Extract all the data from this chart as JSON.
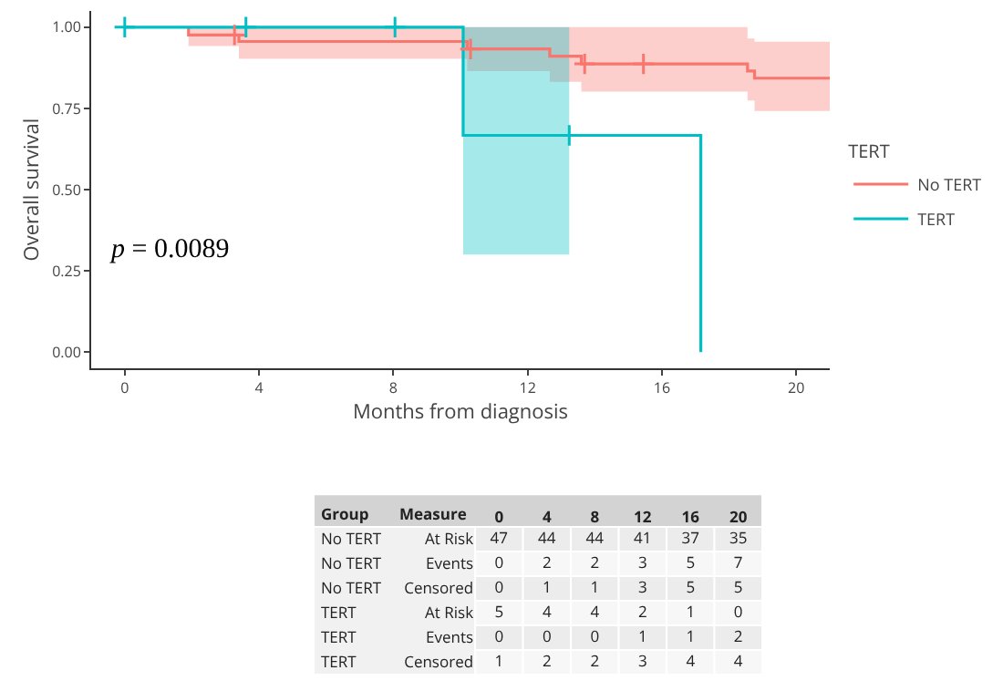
{
  "chart_data": [
    {
      "type": "step",
      "xlabel": "Months from diagnosis",
      "ylabel": "Overall survival",
      "legend_title": "TERT",
      "annotations": [
        "p = 0.0089"
      ],
      "xlim": [
        -1,
        21
      ],
      "xticks": [
        0,
        4,
        8,
        12,
        16,
        20
      ],
      "ylim": [
        -0.05,
        1.05
      ],
      "yticks": [
        {
          "value": 0,
          "label": "0.00"
        },
        {
          "value": 0.25,
          "label": "0.25"
        },
        {
          "value": 0.5,
          "label": "0.50"
        },
        {
          "value": 0.75,
          "label": "0.75"
        },
        {
          "value": 1,
          "label": "1.00"
        }
      ],
      "grid": false,
      "legend": "right",
      "line_style": "solid",
      "series": [
        {
          "name": "No TERT",
          "color": "#f8766d",
          "x": [
            1.9,
            1.9,
            3.4,
            10.2,
            12.66,
            13.6,
            18.55,
            18.76,
            21.0
          ],
          "values": [
            1.0,
            0.976,
            0.956,
            0.933,
            0.911,
            0.887,
            0.865,
            0.843,
            0.843
          ],
          "lower": [
            1.0,
            0.942,
            0.903,
            0.865,
            0.832,
            0.802,
            0.774,
            0.742,
            0.742
          ],
          "upper": [
            1.0,
            1.0,
            1.0,
            1.0,
            1.0,
            1.0,
            0.965,
            0.955,
            0.955
          ]
        },
        {
          "name": "TERT",
          "color": "#00bfc4",
          "x": [
            0,
            10.08,
            13.24,
            17.16,
            17.16
          ],
          "values": [
            1.0,
            0.667,
            0.667,
            0.667,
            0
          ],
          "lower": [
            1.0,
            0.3,
            0.3,
            null,
            null
          ],
          "upper": [
            1.0,
            1.0,
            1.0,
            null,
            null
          ]
        },
        {
          "type": "scatter",
          "marker": "cross",
          "color": "#f8766d",
          "x": [
            3.27,
            10.3,
            13.7,
            15.45
          ],
          "values": [
            0.976,
            0.933,
            0.887,
            0.887
          ]
        },
        {
          "type": "scatter",
          "marker": "cross",
          "color": "#00bfc4",
          "x": [
            0,
            3.61,
            8.05,
            13.24
          ],
          "values": [
            1.0,
            1.0,
            1.0,
            0.667
          ]
        }
      ]
    },
    {
      "type": "heatmap",
      "data_labels": true,
      "ylabel": "Group",
      "y2label": "Measure",
      "categories": [
        "0",
        "4",
        "8",
        "12",
        "16",
        "20"
      ],
      "y_categories": [
        "No TERT",
        "No TERT",
        "No TERT",
        "TERT",
        "TERT",
        "TERT"
      ],
      "y2_categories": [
        "At Risk",
        "Events",
        "Censored",
        "At Risk",
        "Events",
        "Censored"
      ],
      "cells": [
        [
          47,
          44,
          44,
          41,
          37,
          35
        ],
        [
          0,
          2,
          2,
          3,
          5,
          7
        ],
        [
          0,
          1,
          1,
          3,
          5,
          5
        ],
        [
          5,
          4,
          4,
          2,
          1,
          0
        ],
        [
          0,
          0,
          0,
          1,
          1,
          2
        ],
        [
          1,
          2,
          2,
          3,
          4,
          4
        ]
      ]
    }
  ]
}
